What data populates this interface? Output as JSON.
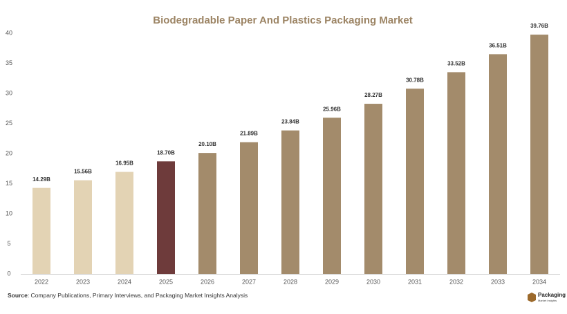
{
  "chart_data": {
    "type": "bar",
    "title": "Biodegradable Paper And Plastics Packaging Market",
    "categories": [
      "2022",
      "2023",
      "2024",
      "2025",
      "2026",
      "2027",
      "2028",
      "2029",
      "2030",
      "2031",
      "2032",
      "2033",
      "2034"
    ],
    "values": [
      14.29,
      15.56,
      16.95,
      18.7,
      20.1,
      21.89,
      23.84,
      25.96,
      28.27,
      30.78,
      33.52,
      36.51,
      39.76
    ],
    "value_labels": [
      "14.29B",
      "15.56B",
      "16.95B",
      "18.70B",
      "20.10B",
      "21.89B",
      "23.84B",
      "25.96B",
      "28.27B",
      "30.78B",
      "33.52B",
      "36.51B",
      "39.76B"
    ],
    "colors": [
      "#e3d3b4",
      "#e3d3b4",
      "#e3d3b4",
      "#6e3b3b",
      "#a38b6b",
      "#a38b6b",
      "#a38b6b",
      "#a38b6b",
      "#a38b6b",
      "#a38b6b",
      "#a38b6b",
      "#a38b6b",
      "#a38b6b"
    ],
    "ylim": [
      0,
      40
    ],
    "yticks": [
      0,
      5,
      10,
      15,
      20,
      25,
      30,
      35,
      40
    ],
    "grid": false
  },
  "footer": {
    "source_label": "Source",
    "source_text": ": Company Publications, Primary Interviews, and Packaging Market Insights Analysis",
    "logo_name": "Packaging",
    "logo_sub": "Market Insights"
  }
}
